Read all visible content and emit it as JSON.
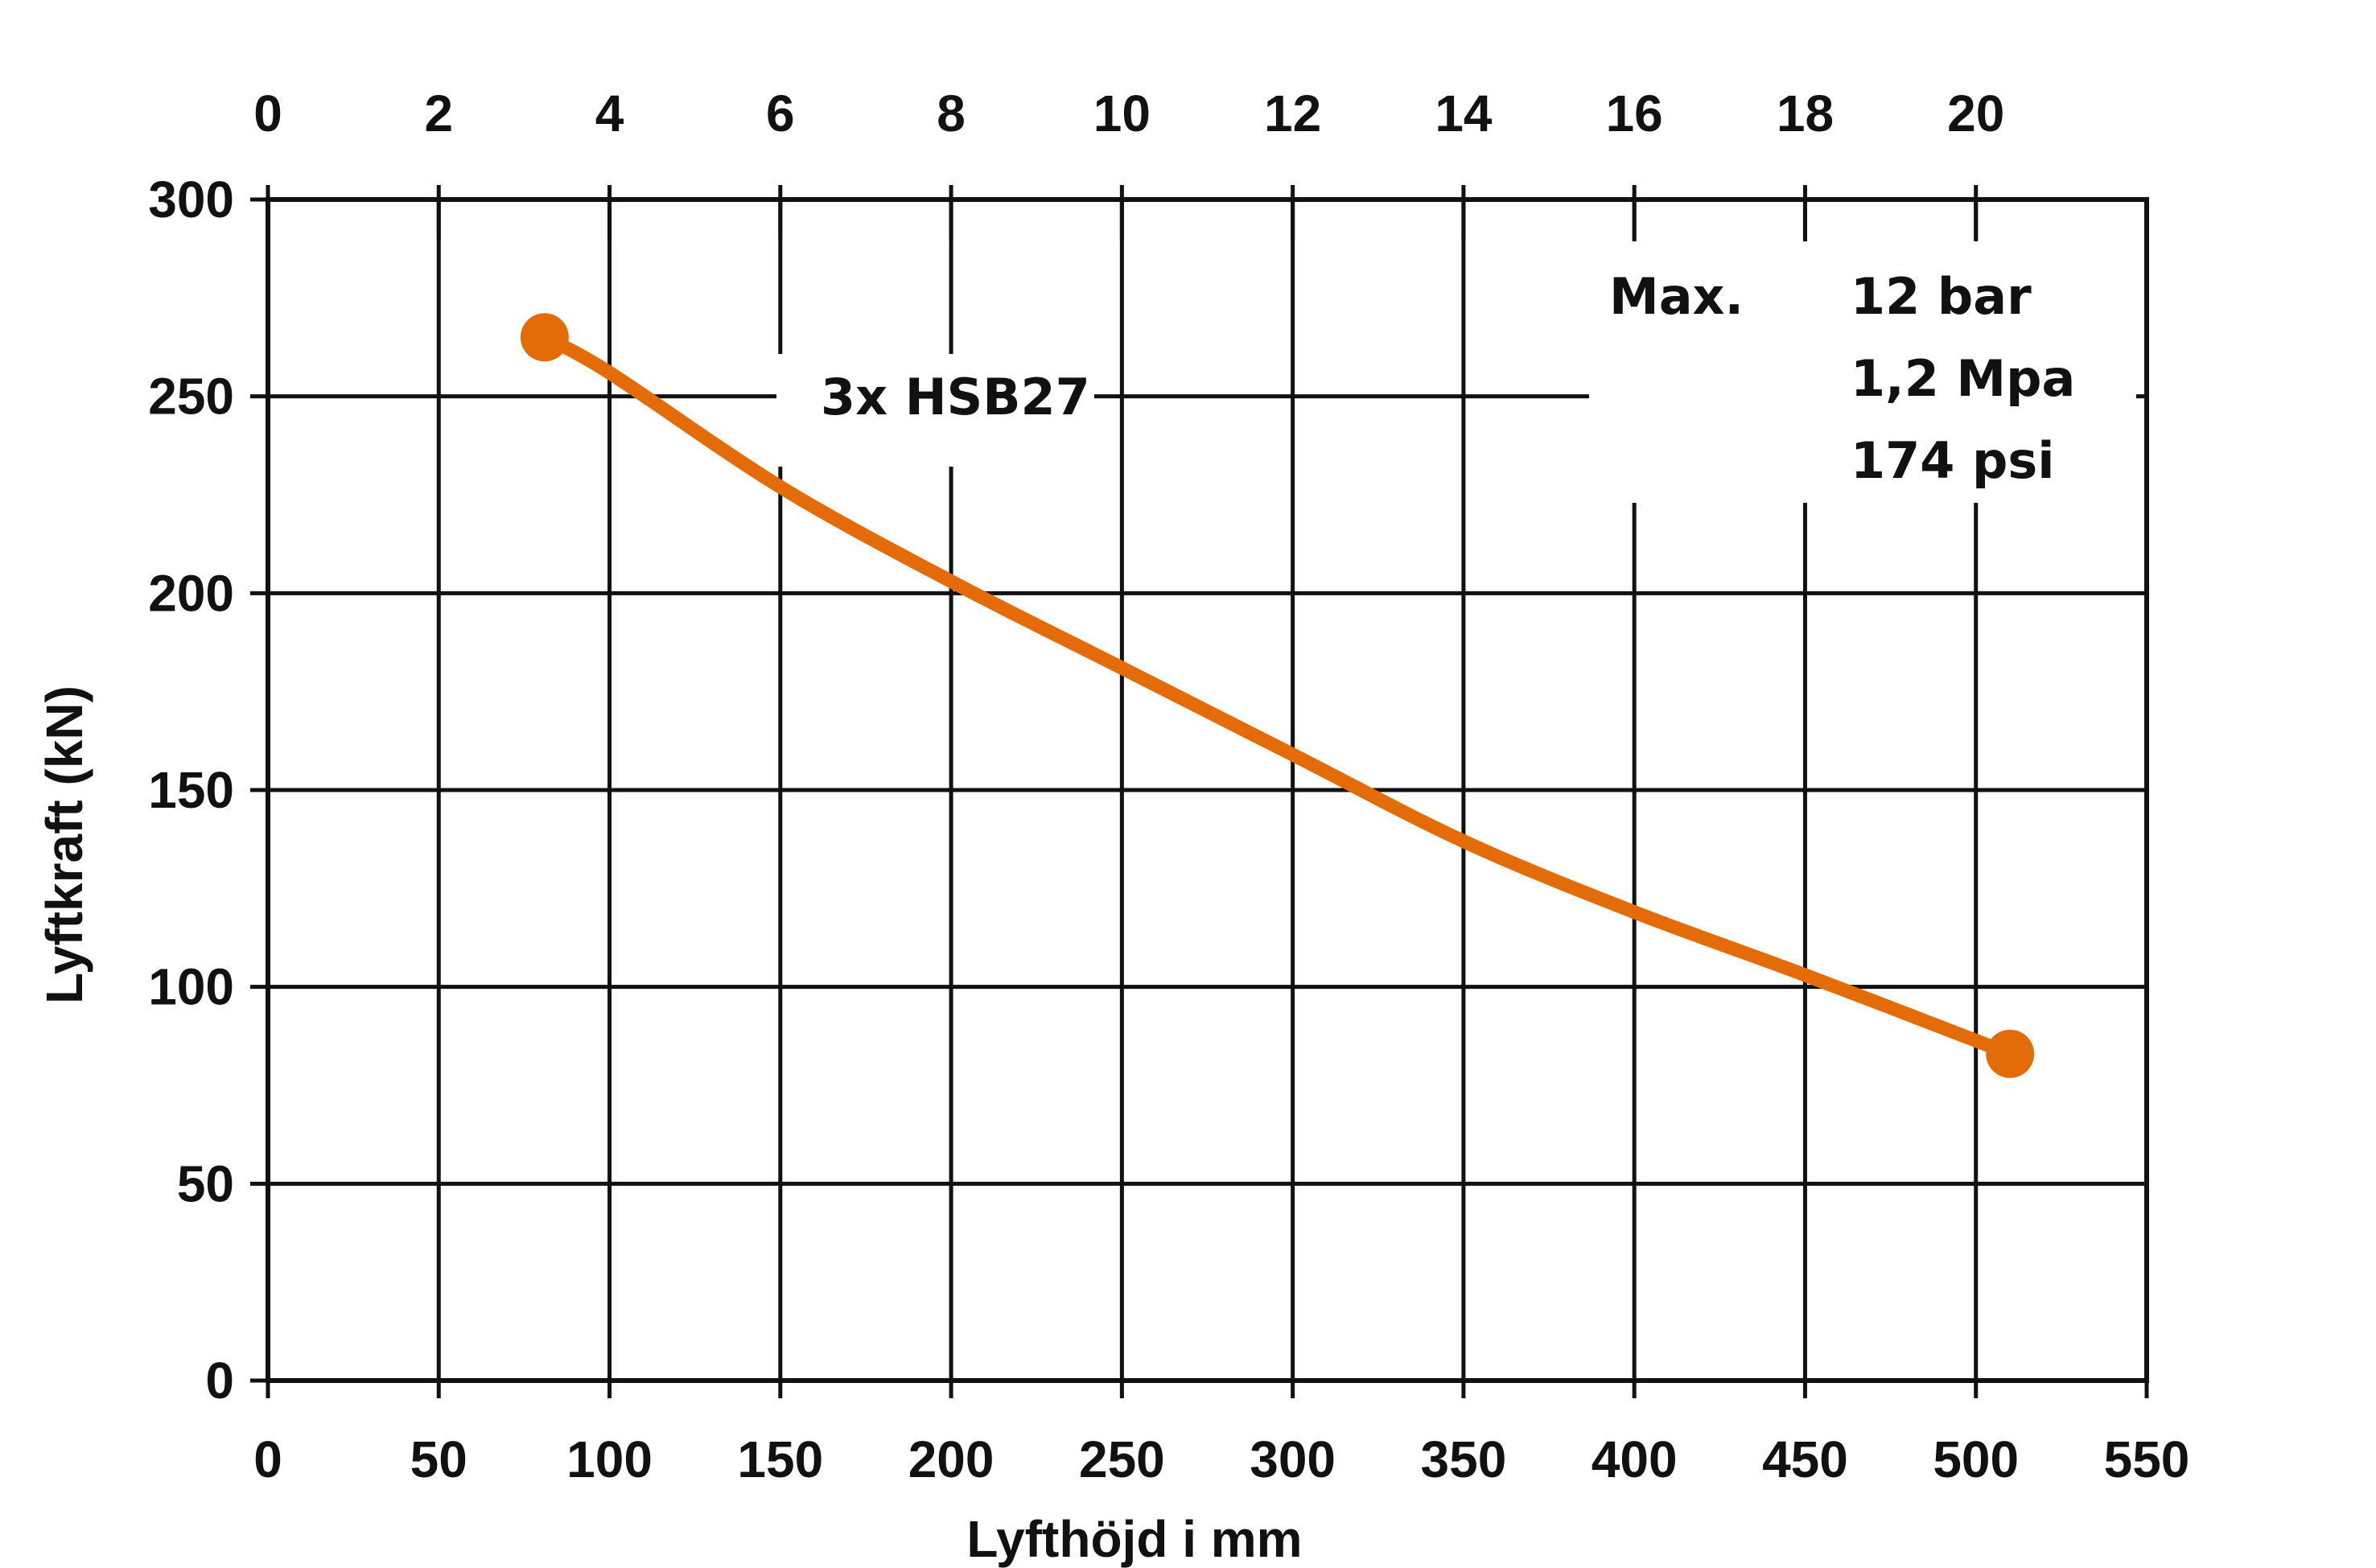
{
  "chart_data": {
    "type": "line",
    "xlabel": "Lyfthöjd i mm",
    "ylabel": "Lyftkraft (kN)",
    "xlim": [
      0,
      550
    ],
    "ylim": [
      0,
      300
    ],
    "x_ticks": [
      "0",
      "50",
      "100",
      "150",
      "200",
      "250",
      "300",
      "350",
      "400",
      "450",
      "500",
      "550"
    ],
    "y_ticks": [
      "0",
      "50",
      "100",
      "150",
      "200",
      "250",
      "300"
    ],
    "x2_ticks": [
      "0",
      "2",
      "4",
      "6",
      "8",
      "10",
      "12",
      "14",
      "16",
      "18",
      "20"
    ],
    "x2_range": [
      0,
      22
    ],
    "grid": true,
    "series": [
      {
        "name": "3x HSB27",
        "color": "#E36C09",
        "x": [
          81,
          100,
          150,
          200,
          250,
          300,
          350,
          400,
          450,
          510
        ],
        "y": [
          265,
          256,
          227,
          203,
          181,
          159,
          137,
          119,
          103,
          83
        ]
      }
    ],
    "annotations": {
      "series_label": "3x HSB27",
      "max_label": "Max.",
      "pressure_lines": [
        "12 bar",
        "1,2 Mpa",
        "174 psi"
      ]
    }
  }
}
